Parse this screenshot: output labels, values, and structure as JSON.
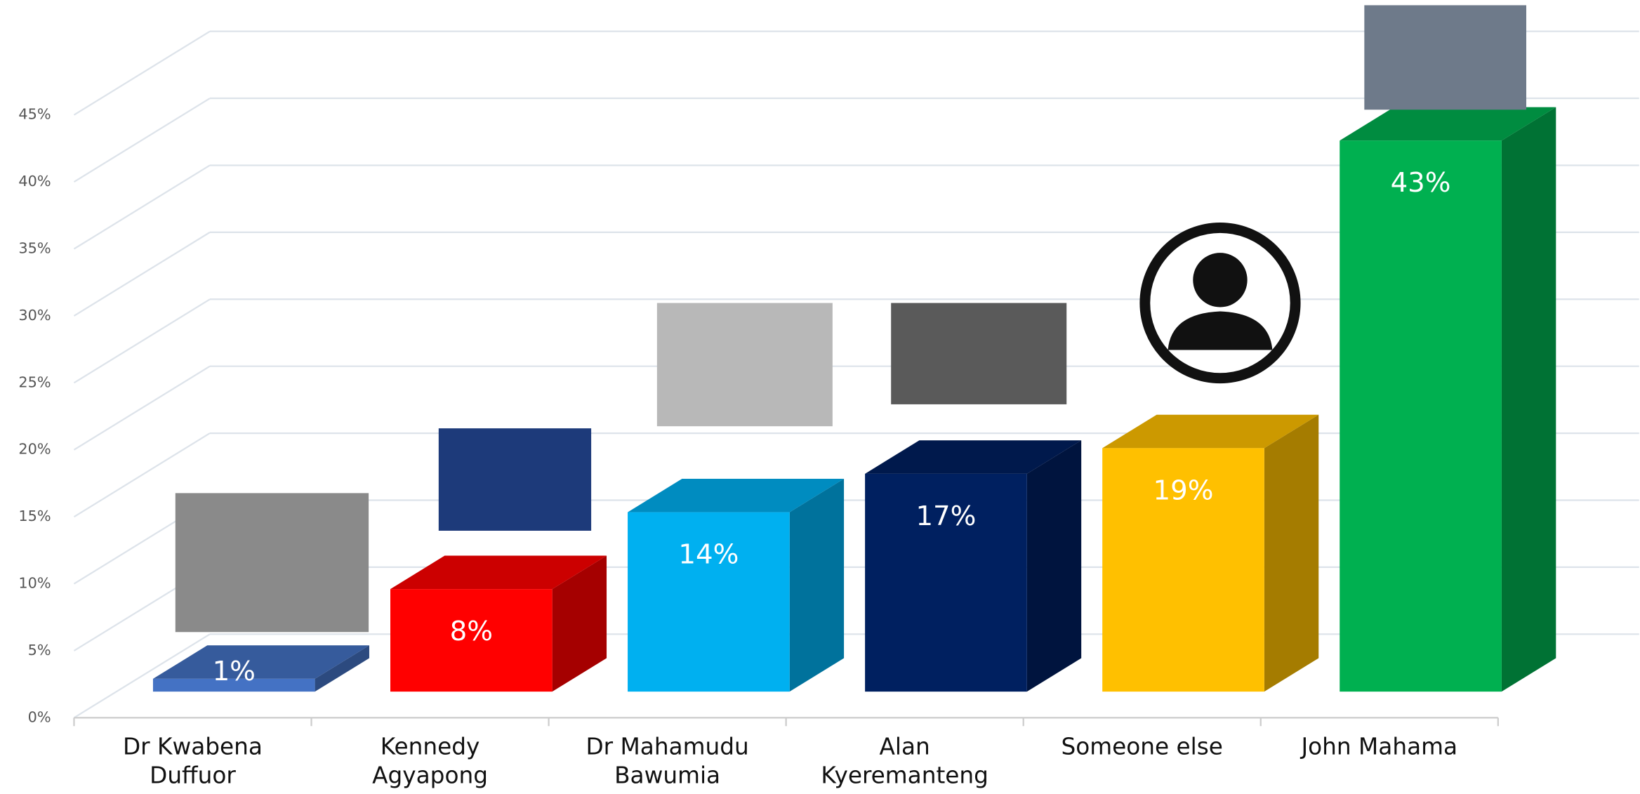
{
  "chart_data": {
    "type": "bar3d",
    "categories": [
      "Dr Kwabena\nDuffuor",
      "Kennedy\nAgyapong",
      "Dr Mahamudu\nBawumia",
      "Alan\nKyeremanteng",
      "Someone else",
      "John Mahama"
    ],
    "values": [
      1,
      8,
      14,
      17,
      19,
      43
    ],
    "value_labels": [
      "1%",
      "8%",
      "14%",
      "17%",
      "19%",
      "43%"
    ],
    "colors": [
      "#4472c4",
      "#ff0000",
      "#00b0f0",
      "#002060",
      "#ffc000",
      "#00b050"
    ],
    "ylim": [
      0,
      45
    ],
    "yticks": [
      {
        "value": 0,
        "label": "0%"
      },
      {
        "value": 5,
        "label": "5%"
      },
      {
        "value": 10,
        "label": "10%"
      },
      {
        "value": 15,
        "label": "15%"
      },
      {
        "value": 20,
        "label": "20%"
      },
      {
        "value": 25,
        "label": "25%"
      },
      {
        "value": 30,
        "label": "30%"
      },
      {
        "value": 35,
        "label": "35%"
      },
      {
        "value": 40,
        "label": "40%"
      },
      {
        "value": 45,
        "label": "45%"
      }
    ],
    "grid": true
  }
}
